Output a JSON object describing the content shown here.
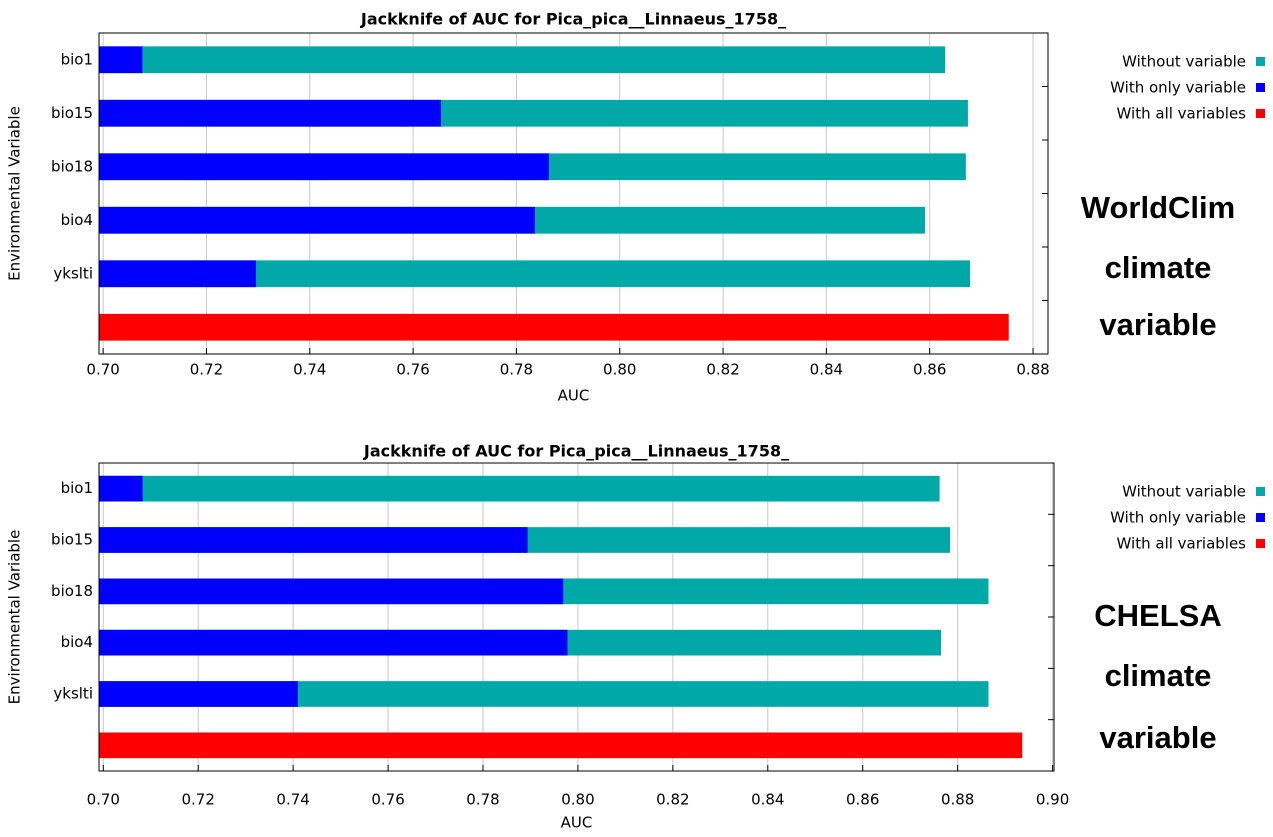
{
  "chart_data": [
    {
      "type": "bar",
      "orientation": "horizontal",
      "title": "Jackknife of AUC for Pica_pica__Linnaeus_1758_",
      "ylabel": "Environmental Variable",
      "xlabel": "AUC",
      "annotation": [
        "WorldClim",
        "climate",
        "variable"
      ],
      "categories": [
        "bio1",
        "bio15",
        "bio18",
        "bio4",
        "ykslti",
        null
      ],
      "series": [
        {
          "name": "Without variable",
          "color": "#00a8a8",
          "values": [
            0.863,
            0.8674,
            0.867,
            0.8591,
            0.8678,
            null
          ]
        },
        {
          "name": "With only variable",
          "color": "#0000ff",
          "values": [
            0.7076,
            0.7654,
            0.7863,
            0.7836,
            0.7296,
            null
          ]
        },
        {
          "name": "With all variables",
          "color": "#ff0000",
          "values": [
            null,
            null,
            null,
            null,
            null,
            0.8753
          ]
        }
      ],
      "xlim": [
        0.6992,
        0.8829
      ],
      "xticks": [
        {
          "value": 0.7,
          "label": "0.70"
        },
        0.72,
        0.74,
        0.76,
        0.78,
        {
          "value": 0.8,
          "label": "0.80"
        },
        0.82,
        0.84,
        0.86,
        0.88
      ],
      "grid": true,
      "legend": "right"
    },
    {
      "type": "bar",
      "orientation": "horizontal",
      "title": "Jackknife of AUC for Pica_pica__Linnaeus_1758_",
      "ylabel": "Environmental Variable",
      "xlabel": "AUC",
      "annotation": [
        "CHELSA",
        "climate",
        "variable"
      ],
      "categories": [
        "bio1",
        "bio15",
        "bio18",
        "bio4",
        "ykslti",
        null
      ],
      "series": [
        {
          "name": "Without variable",
          "color": "#00a8a8",
          "values": [
            0.8762,
            0.8784,
            0.8865,
            0.8765,
            0.8865,
            null
          ]
        },
        {
          "name": "With only variable",
          "color": "#0000ff",
          "values": [
            0.7083,
            0.7894,
            0.7969,
            0.7978,
            0.741,
            null
          ]
        },
        {
          "name": "With all variables",
          "color": "#ff0000",
          "values": [
            null,
            null,
            null,
            null,
            null,
            0.8936
          ]
        }
      ],
      "xlim": [
        0.6991,
        0.9003
      ],
      "xticks": [
        {
          "value": 0.7,
          "label": "0.70"
        },
        0.72,
        0.74,
        0.76,
        0.78,
        {
          "value": 0.8,
          "label": "0.80"
        },
        0.82,
        0.84,
        0.86,
        0.88,
        {
          "value": 0.9,
          "label": "0.90"
        }
      ],
      "grid": true,
      "legend": "right"
    }
  ]
}
